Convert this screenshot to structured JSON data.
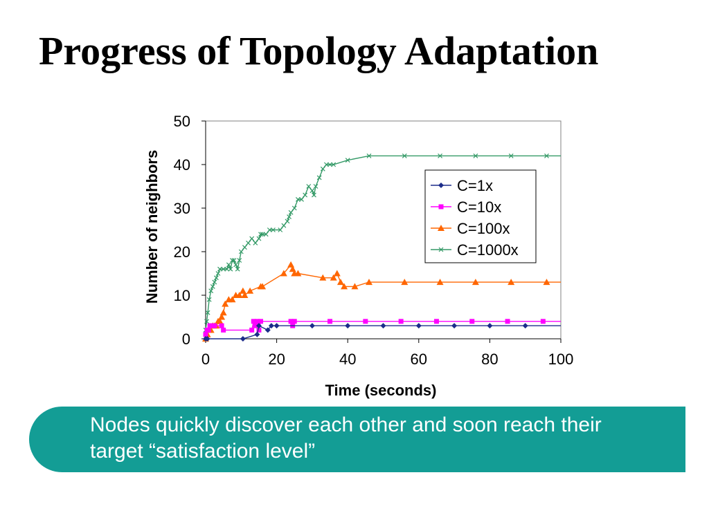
{
  "slide": {
    "title": "Progress of Topology Adaptation",
    "callout": "Nodes quickly discover each other and soon reach their target “satisfaction level”"
  },
  "chart_data": {
    "type": "line",
    "xlabel": "Time (seconds)",
    "ylabel": "Number of neighbors",
    "xlim": [
      0,
      100
    ],
    "ylim": [
      0,
      50
    ],
    "xticks": [
      0,
      20,
      40,
      60,
      80,
      100
    ],
    "yticks": [
      0,
      10,
      20,
      30,
      40,
      50
    ],
    "grid": false,
    "legend_position": "right",
    "series": [
      {
        "name": "C=1x",
        "color": "#1c2c8a",
        "marker": "diamond",
        "x": [
          0,
          0.5,
          10.5,
          14.5,
          15,
          17.5,
          18.5,
          20,
          30,
          40,
          50,
          60,
          70,
          80,
          90
        ],
        "y": [
          0,
          0,
          0,
          1,
          3,
          2,
          3,
          3,
          3,
          3,
          3,
          3,
          3,
          3,
          3
        ]
      },
      {
        "name": "C=10x",
        "color": "#ff00ff",
        "marker": "square",
        "x": [
          0,
          0.4,
          0.8,
          1.2,
          1.6,
          2.0,
          2.5,
          4.5,
          5.0,
          13.0,
          13.5,
          14.0,
          14.5,
          15.0,
          15.5,
          24.0,
          24.5,
          25.0,
          35.0,
          45.0,
          55.0,
          65.0,
          75.0,
          85.0,
          95.0
        ],
        "y": [
          1,
          2,
          2,
          3,
          3,
          3,
          3,
          3,
          2,
          2,
          4,
          3,
          4,
          2,
          4,
          4,
          3,
          4,
          4,
          4,
          4,
          4,
          4,
          4,
          4
        ]
      },
      {
        "name": "C=100x",
        "color": "#ff6600",
        "marker": "triangle",
        "x": [
          0,
          0.5,
          1,
          1.5,
          2,
          2.5,
          3,
          3.5,
          4,
          4.5,
          5,
          5.5,
          6.5,
          7.5,
          8.5,
          9.5,
          10.5,
          11,
          12.5,
          15.5,
          16,
          22,
          24,
          24.5,
          25,
          26,
          33,
          36,
          37,
          38,
          39,
          42,
          46,
          56,
          66,
          76,
          86,
          96
        ],
        "y": [
          0,
          1,
          2,
          2,
          3,
          3,
          3,
          4,
          4,
          5,
          6,
          8,
          9,
          9,
          10,
          10,
          11,
          10,
          11,
          12,
          12,
          15,
          17,
          16,
          15,
          15,
          14,
          14,
          15,
          13,
          12,
          12,
          13,
          13,
          13,
          13,
          13,
          13
        ]
      },
      {
        "name": "C=1000x",
        "color": "#339966",
        "marker": "x",
        "x": [
          0,
          0.3,
          0.6,
          1,
          1.5,
          2,
          2.5,
          3,
          3.5,
          4,
          5,
          6,
          6.5,
          7,
          7.5,
          8,
          8.5,
          9,
          9.5,
          10,
          11,
          12,
          13,
          14,
          15,
          15.5,
          16,
          17,
          18,
          19,
          21,
          22,
          23,
          23.5,
          24,
          25,
          26,
          27,
          28,
          29,
          30,
          30.5,
          31,
          32,
          33,
          34,
          35,
          36,
          40,
          46,
          56,
          66,
          76,
          86,
          96
        ],
        "y": [
          2,
          4,
          6,
          9,
          11,
          12,
          13,
          14,
          15,
          16,
          16,
          16,
          17,
          16,
          18,
          18,
          17,
          16,
          18,
          20,
          21,
          22,
          23,
          22,
          23,
          24,
          24,
          24,
          25,
          25,
          25,
          26,
          27,
          28,
          29,
          30,
          32,
          32,
          33,
          35,
          34,
          33,
          35,
          37,
          39,
          40,
          40,
          40,
          41,
          42,
          42,
          42,
          42,
          42,
          42
        ]
      }
    ]
  }
}
